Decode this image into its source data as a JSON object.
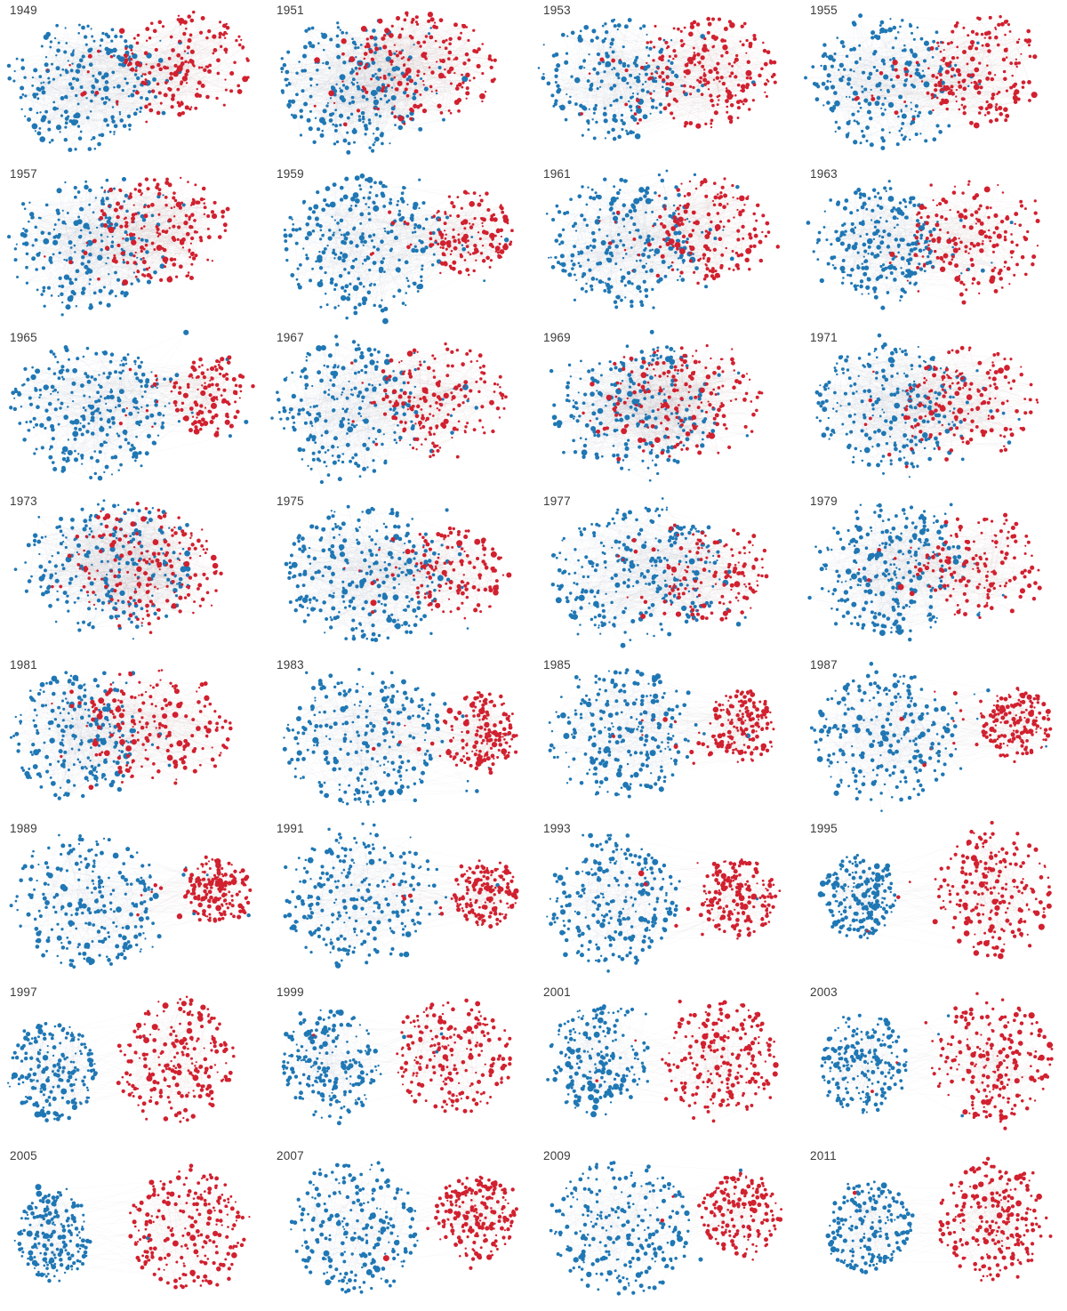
{
  "page": {
    "background": "#ffffff",
    "label_color": "#3a3a3a"
  },
  "chart_data": {
    "type": "scatter",
    "subtype": "network-small-multiples",
    "title": "",
    "layout": {
      "columns": 4,
      "rows": 8,
      "legend": "none",
      "grid": false
    },
    "colors": {
      "blue": "#1f77b4",
      "red": "#d1202f",
      "edge": "#888888"
    },
    "panels": [
      {
        "year": "1949",
        "mix": 0.65,
        "dem": {
          "cx": 0.3,
          "cy": 0.52,
          "rx": 0.26,
          "ry": 0.4,
          "n": 250
        },
        "rep": {
          "cx": 0.7,
          "cy": 0.4,
          "rx": 0.24,
          "ry": 0.32,
          "n": 180
        }
      },
      {
        "year": "1951",
        "mix": 0.9,
        "dem": {
          "cx": 0.3,
          "cy": 0.52,
          "rx": 0.26,
          "ry": 0.42,
          "n": 235
        },
        "rep": {
          "cx": 0.6,
          "cy": 0.42,
          "rx": 0.26,
          "ry": 0.36,
          "n": 199
        }
      },
      {
        "year": "1953",
        "mix": 0.55,
        "dem": {
          "cx": 0.28,
          "cy": 0.48,
          "rx": 0.25,
          "ry": 0.38,
          "n": 213
        },
        "rep": {
          "cx": 0.66,
          "cy": 0.44,
          "rx": 0.24,
          "ry": 0.34,
          "n": 221
        }
      },
      {
        "year": "1955",
        "mix": 0.6,
        "dem": {
          "cx": 0.3,
          "cy": 0.5,
          "rx": 0.26,
          "ry": 0.4,
          "n": 232
        },
        "rep": {
          "cx": 0.68,
          "cy": 0.44,
          "rx": 0.22,
          "ry": 0.33,
          "n": 203
        }
      },
      {
        "year": "1957",
        "mix": 0.75,
        "dem": {
          "cx": 0.3,
          "cy": 0.5,
          "rx": 0.27,
          "ry": 0.4,
          "n": 234
        },
        "rep": {
          "cx": 0.62,
          "cy": 0.4,
          "rx": 0.24,
          "ry": 0.33,
          "n": 201
        }
      },
      {
        "year": "1959",
        "mix": 0.5,
        "dem": {
          "cx": 0.36,
          "cy": 0.5,
          "rx": 0.3,
          "ry": 0.42,
          "n": 283
        },
        "rep": {
          "cx": 0.76,
          "cy": 0.42,
          "rx": 0.16,
          "ry": 0.26,
          "n": 153
        }
      },
      {
        "year": "1961",
        "mix": 0.6,
        "dem": {
          "cx": 0.33,
          "cy": 0.48,
          "rx": 0.28,
          "ry": 0.4,
          "n": 263
        },
        "rep": {
          "cx": 0.67,
          "cy": 0.4,
          "rx": 0.22,
          "ry": 0.32,
          "n": 174
        }
      },
      {
        "year": "1963",
        "mix": 0.5,
        "dem": {
          "cx": 0.28,
          "cy": 0.48,
          "rx": 0.22,
          "ry": 0.36,
          "n": 258
        },
        "rep": {
          "cx": 0.66,
          "cy": 0.45,
          "rx": 0.24,
          "ry": 0.36,
          "n": 176
        }
      },
      {
        "year": "1965",
        "mix": 0.45,
        "dem": {
          "cx": 0.33,
          "cy": 0.5,
          "rx": 0.29,
          "ry": 0.42,
          "n": 295
        },
        "rep": {
          "cx": 0.79,
          "cy": 0.42,
          "rx": 0.14,
          "ry": 0.24,
          "n": 140
        }
      },
      {
        "year": "1967",
        "mix": 0.55,
        "dem": {
          "cx": 0.3,
          "cy": 0.5,
          "rx": 0.26,
          "ry": 0.42,
          "n": 248
        },
        "rep": {
          "cx": 0.66,
          "cy": 0.44,
          "rx": 0.24,
          "ry": 0.34,
          "n": 187
        }
      },
      {
        "year": "1969",
        "mix": 0.85,
        "dem": {
          "cx": 0.38,
          "cy": 0.48,
          "rx": 0.32,
          "ry": 0.4,
          "n": 243
        },
        "rep": {
          "cx": 0.58,
          "cy": 0.46,
          "rx": 0.28,
          "ry": 0.36,
          "n": 192
        }
      },
      {
        "year": "1971",
        "mix": 0.7,
        "dem": {
          "cx": 0.33,
          "cy": 0.48,
          "rx": 0.28,
          "ry": 0.4,
          "n": 255
        },
        "rep": {
          "cx": 0.64,
          "cy": 0.46,
          "rx": 0.25,
          "ry": 0.34,
          "n": 180
        }
      },
      {
        "year": "1973",
        "mix": 0.9,
        "dem": {
          "cx": 0.4,
          "cy": 0.48,
          "rx": 0.32,
          "ry": 0.4,
          "n": 242
        },
        "rep": {
          "cx": 0.56,
          "cy": 0.46,
          "rx": 0.28,
          "ry": 0.36,
          "n": 192
        }
      },
      {
        "year": "1975",
        "mix": 0.55,
        "dem": {
          "cx": 0.36,
          "cy": 0.5,
          "rx": 0.3,
          "ry": 0.42,
          "n": 291
        },
        "rep": {
          "cx": 0.72,
          "cy": 0.5,
          "rx": 0.18,
          "ry": 0.28,
          "n": 144
        }
      },
      {
        "year": "1977",
        "mix": 0.55,
        "dem": {
          "cx": 0.38,
          "cy": 0.5,
          "rx": 0.32,
          "ry": 0.42,
          "n": 292
        },
        "rep": {
          "cx": 0.7,
          "cy": 0.5,
          "rx": 0.2,
          "ry": 0.3,
          "n": 143
        }
      },
      {
        "year": "1979",
        "mix": 0.55,
        "dem": {
          "cx": 0.34,
          "cy": 0.48,
          "rx": 0.28,
          "ry": 0.4,
          "n": 277
        },
        "rep": {
          "cx": 0.68,
          "cy": 0.46,
          "rx": 0.22,
          "ry": 0.32,
          "n": 158
        }
      },
      {
        "year": "1981",
        "mix": 0.6,
        "dem": {
          "cx": 0.28,
          "cy": 0.5,
          "rx": 0.24,
          "ry": 0.4,
          "n": 243
        },
        "rep": {
          "cx": 0.6,
          "cy": 0.44,
          "rx": 0.28,
          "ry": 0.36,
          "n": 192
        }
      },
      {
        "year": "1983",
        "mix": 0.35,
        "dem": {
          "cx": 0.36,
          "cy": 0.5,
          "rx": 0.3,
          "ry": 0.42,
          "n": 269
        },
        "rep": {
          "cx": 0.8,
          "cy": 0.48,
          "rx": 0.14,
          "ry": 0.24,
          "n": 166
        }
      },
      {
        "year": "1985",
        "mix": 0.3,
        "dem": {
          "cx": 0.33,
          "cy": 0.48,
          "rx": 0.28,
          "ry": 0.4,
          "n": 253
        },
        "rep": {
          "cx": 0.79,
          "cy": 0.44,
          "rx": 0.13,
          "ry": 0.22,
          "n": 182
        }
      },
      {
        "year": "1987",
        "mix": 0.28,
        "dem": {
          "cx": 0.32,
          "cy": 0.5,
          "rx": 0.27,
          "ry": 0.4,
          "n": 258
        },
        "rep": {
          "cx": 0.81,
          "cy": 0.42,
          "rx": 0.13,
          "ry": 0.22,
          "n": 177
        }
      },
      {
        "year": "1989",
        "mix": 0.22,
        "dem": {
          "cx": 0.32,
          "cy": 0.5,
          "rx": 0.28,
          "ry": 0.42,
          "n": 260
        },
        "rep": {
          "cx": 0.82,
          "cy": 0.45,
          "rx": 0.12,
          "ry": 0.2,
          "n": 175
        }
      },
      {
        "year": "1991",
        "mix": 0.2,
        "dem": {
          "cx": 0.34,
          "cy": 0.5,
          "rx": 0.28,
          "ry": 0.42,
          "n": 267
        },
        "rep": {
          "cx": 0.82,
          "cy": 0.46,
          "rx": 0.12,
          "ry": 0.2,
          "n": 167
        }
      },
      {
        "year": "1993",
        "mix": 0.14,
        "dem": {
          "cx": 0.3,
          "cy": 0.5,
          "rx": 0.24,
          "ry": 0.4,
          "n": 258
        },
        "rep": {
          "cx": 0.77,
          "cy": 0.48,
          "rx": 0.14,
          "ry": 0.24,
          "n": 176
        }
      },
      {
        "year": "1995",
        "mix": 0.12,
        "dem": {
          "cx": 0.22,
          "cy": 0.48,
          "rx": 0.14,
          "ry": 0.26,
          "n": 204
        },
        "rep": {
          "cx": 0.72,
          "cy": 0.46,
          "rx": 0.22,
          "ry": 0.38,
          "n": 230
        }
      },
      {
        "year": "1997",
        "mix": 0.06,
        "dem": {
          "cx": 0.2,
          "cy": 0.55,
          "rx": 0.16,
          "ry": 0.3,
          "n": 207
        },
        "rep": {
          "cx": 0.66,
          "cy": 0.48,
          "rx": 0.22,
          "ry": 0.38,
          "n": 226
        }
      },
      {
        "year": "1999",
        "mix": 0.09,
        "dem": {
          "cx": 0.24,
          "cy": 0.5,
          "rx": 0.18,
          "ry": 0.34,
          "n": 211
        },
        "rep": {
          "cx": 0.7,
          "cy": 0.46,
          "rx": 0.22,
          "ry": 0.36,
          "n": 223
        }
      },
      {
        "year": "2001",
        "mix": 0.08,
        "dem": {
          "cx": 0.24,
          "cy": 0.48,
          "rx": 0.18,
          "ry": 0.34,
          "n": 212
        },
        "rep": {
          "cx": 0.7,
          "cy": 0.46,
          "rx": 0.22,
          "ry": 0.36,
          "n": 221
        }
      },
      {
        "year": "2003",
        "mix": 0.05,
        "dem": {
          "cx": 0.24,
          "cy": 0.5,
          "rx": 0.16,
          "ry": 0.3,
          "n": 205
        },
        "rep": {
          "cx": 0.73,
          "cy": 0.48,
          "rx": 0.22,
          "ry": 0.38,
          "n": 229
        }
      },
      {
        "year": "2005",
        "mix": 0.04,
        "dem": {
          "cx": 0.2,
          "cy": 0.55,
          "rx": 0.14,
          "ry": 0.28,
          "n": 202
        },
        "rep": {
          "cx": 0.7,
          "cy": 0.5,
          "rx": 0.22,
          "ry": 0.38,
          "n": 232
        }
      },
      {
        "year": "2007",
        "mix": 0.05,
        "dem": {
          "cx": 0.33,
          "cy": 0.5,
          "rx": 0.24,
          "ry": 0.4,
          "n": 233
        },
        "rep": {
          "cx": 0.78,
          "cy": 0.44,
          "rx": 0.15,
          "ry": 0.26,
          "n": 202
        }
      },
      {
        "year": "2009",
        "mix": 0.05,
        "dem": {
          "cx": 0.33,
          "cy": 0.5,
          "rx": 0.26,
          "ry": 0.42,
          "n": 257
        },
        "rep": {
          "cx": 0.78,
          "cy": 0.42,
          "rx": 0.15,
          "ry": 0.26,
          "n": 178
        }
      },
      {
        "year": "2011",
        "mix": 0.06,
        "dem": {
          "cx": 0.26,
          "cy": 0.5,
          "rx": 0.16,
          "ry": 0.28,
          "n": 193
        },
        "rep": {
          "cx": 0.72,
          "cy": 0.46,
          "rx": 0.2,
          "ry": 0.36,
          "n": 242
        }
      }
    ]
  }
}
